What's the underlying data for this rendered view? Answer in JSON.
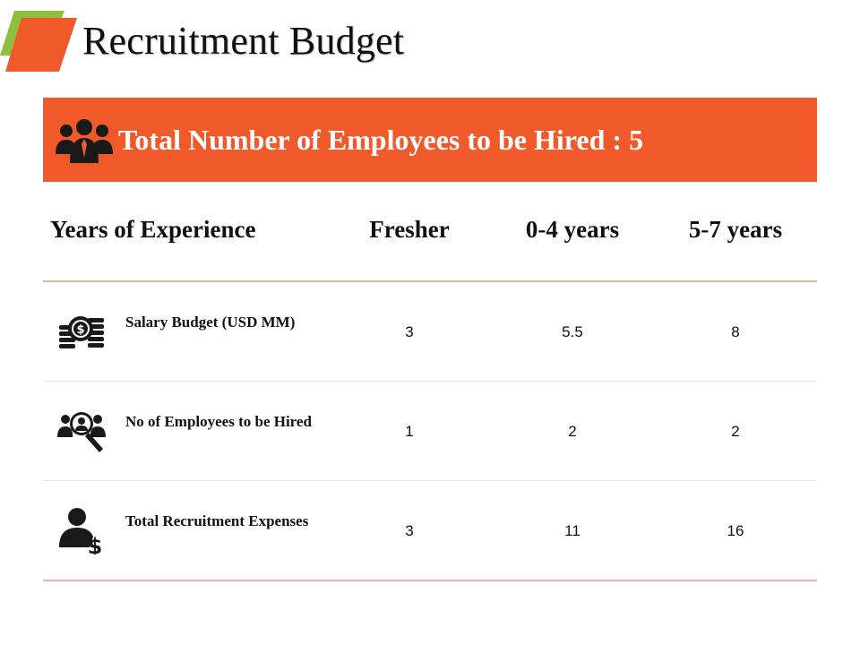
{
  "slide": {
    "title": "Recruitment Budget",
    "colors": {
      "accent": "#f05a2b",
      "logo_green": "#8fbf3f",
      "divider": "#e2b89a"
    }
  },
  "banner": {
    "text": "Total Number of Employees to be Hired : 5",
    "icon": "group-people-icon"
  },
  "table": {
    "headers": [
      "Years of Experience",
      "Fresher",
      "0-4 years",
      "5-7 years"
    ],
    "rows": [
      {
        "icon": "money-coins-icon",
        "label": "Salary Budget (USD MM)",
        "values": [
          "3",
          "5.5",
          "8"
        ]
      },
      {
        "icon": "people-search-icon",
        "label": "No of Employees to be Hired",
        "values": [
          "1",
          "2",
          "2"
        ]
      },
      {
        "icon": "person-dollar-icon",
        "label": "Total Recruitment Expenses",
        "values": [
          "3",
          "11",
          "16"
        ]
      }
    ]
  }
}
